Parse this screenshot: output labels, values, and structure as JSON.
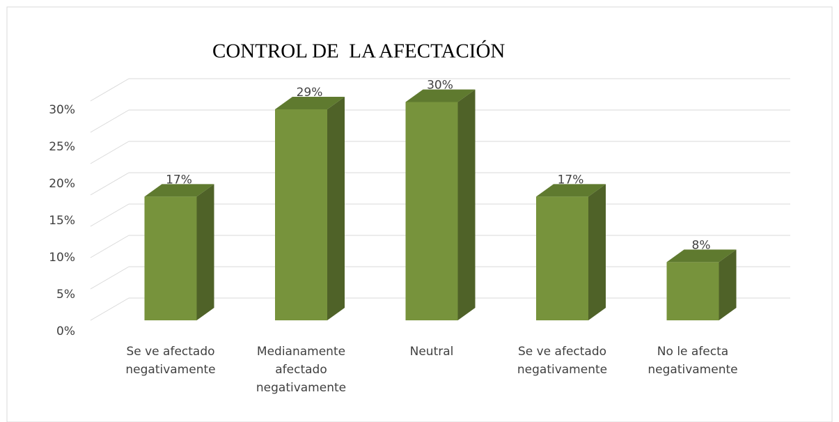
{
  "chart_data": {
    "type": "bar3d",
    "title": "CONTROL DE  LA AFECTACIÓN",
    "categories": [
      "Se ve afectado negativamente",
      "Medianamente afectado negativamente",
      "Neutral",
      "Se ve afectado negativamente",
      "No le afecta negativamente"
    ],
    "values": [
      17,
      29,
      30,
      17,
      8
    ],
    "value_labels": [
      "17%",
      "29%",
      "30%",
      "17%",
      "8%"
    ],
    "color": "#77933c",
    "ylim": [
      0,
      35
    ],
    "yticks": [
      {
        "value": 0,
        "label": "0%"
      },
      {
        "value": 5,
        "label": "5%"
      },
      {
        "value": 10,
        "label": "10%"
      },
      {
        "value": 15,
        "label": "15%"
      },
      {
        "value": 20,
        "label": "20%"
      },
      {
        "value": 25,
        "label": "25%"
      },
      {
        "value": 30,
        "label": "30%"
      }
    ],
    "grid": true
  }
}
